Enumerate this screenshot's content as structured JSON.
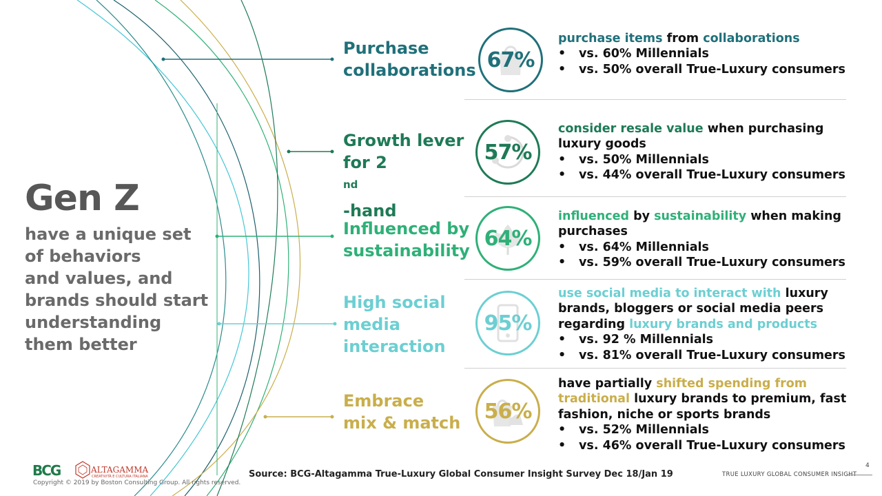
{
  "colors": {
    "teal_dark": "#20707a",
    "green_dark": "#1e7a56",
    "green": "#2fb077",
    "cyan": "#6ccfd2",
    "gold": "#c9ae4b",
    "text_gray": "#575757"
  },
  "hero": {
    "title": "Gen Z",
    "subtitle_lines": [
      "have a unique set",
      "of behaviors",
      "and values, and",
      "brands should start",
      "understanding",
      "them better"
    ]
  },
  "rows": [
    {
      "label_lines": [
        "Purchase",
        "collaborations"
      ],
      "percent": "67%",
      "icon": "shopping-bag-icon",
      "color": "#20707a",
      "desc_lines": [
        [
          {
            "t": "purchase items",
            "hl": true
          },
          {
            "t": " from ",
            "hl": false
          },
          {
            "t": "collaborations",
            "hl": true
          }
        ]
      ],
      "bullets": [
        "vs. 60% Millennials",
        "vs. 50% overall True-Luxury consumers"
      ]
    },
    {
      "label_lines": [
        "Growth lever",
        "for 2",
        "nd",
        "-hand"
      ],
      "percent": "57%",
      "icon": "recycle-icon",
      "color": "#1e7a56",
      "desc_lines": [
        [
          {
            "t": "consider resale value",
            "hl": true
          },
          {
            "t": " when purchasing",
            "hl": false
          }
        ],
        [
          {
            "t": "luxury goods",
            "hl": false
          }
        ]
      ],
      "bullets": [
        "vs. 50% Millennials",
        "vs. 44% overall True-Luxury consumers"
      ]
    },
    {
      "label_lines": [
        "Influenced by",
        "sustainability"
      ],
      "percent": "64%",
      "icon": "leaf-icon",
      "color": "#2fb077",
      "desc_lines": [
        [
          {
            "t": "influenced",
            "hl": true
          },
          {
            "t": " by ",
            "hl": false
          },
          {
            "t": "sustainability",
            "hl": true
          },
          {
            "t": " when making",
            "hl": false
          }
        ],
        [
          {
            "t": "purchases",
            "hl": false
          }
        ]
      ],
      "bullets": [
        "vs. 64% Millennials",
        "vs. 59% overall True-Luxury consumers"
      ]
    },
    {
      "label_lines": [
        "High social",
        "media",
        "interaction"
      ],
      "percent": "95%",
      "icon": "smartphone-icon",
      "color": "#6ccfd2",
      "desc_lines": [
        [
          {
            "t": "use social media to interact with",
            "hl": true
          },
          {
            "t": " luxury",
            "hl": false
          }
        ],
        [
          {
            "t": "brands, bloggers or social media peers",
            "hl": false
          }
        ],
        [
          {
            "t": "regarding ",
            "hl": false
          },
          {
            "t": "luxury brands and products",
            "hl": true
          }
        ]
      ],
      "bullets": [
        "vs. 92 % Millennials",
        "vs. 81% overall True-Luxury consumers"
      ]
    },
    {
      "label_lines": [
        "Embrace",
        "mix & match"
      ],
      "percent": "56%",
      "icon": "shoe-bag-icon",
      "color": "#c9ae4b",
      "desc_lines": [
        [
          {
            "t": "have partially ",
            "hl": false
          },
          {
            "t": "shifted spending from",
            "hl": true
          }
        ],
        [
          {
            "t": "traditional",
            "hl": true
          },
          {
            "t": " luxury brands to premium, fast",
            "hl": false
          }
        ],
        [
          {
            "t": "fashion, niche or sports brands",
            "hl": false
          }
        ]
      ],
      "bullets": [
        "vs. 52% Millennials",
        "vs. 46% overall True-Luxury consumers"
      ]
    }
  ],
  "bullet_char": "•",
  "footer": {
    "source": "Source: BCG-Altagamma True-Luxury Global Consumer Insight Survey Dec 18/Jan 19",
    "copyright": "Copyright © 2019 by Boston Consulting Group. All rights reserved.",
    "right_label": "TRUE LUXURY GLOBAL CONSUMER INSIGHT",
    "page_number": "4",
    "bcg_logo": "BCG",
    "altagamma_logo": "ALTAGAMMA",
    "altagamma_tagline": "CREATIVITÀ E CULTURA ITALIANA"
  }
}
